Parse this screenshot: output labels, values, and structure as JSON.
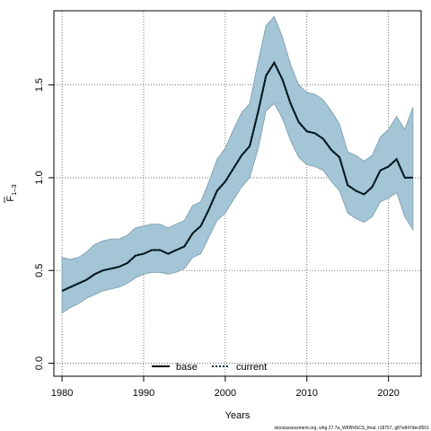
{
  "chart_data": {
    "type": "line",
    "xlabel": "Years",
    "ylabel_main": "F",
    "ylabel_sub": "1–3",
    "footer": "stockassessment.org, whg.27.7a_WKBNSCS_final, r18757, g87e847dec8551",
    "xlim": [
      1979,
      2024
    ],
    "ylim": [
      -0.07,
      1.9
    ],
    "xticks": [
      1980,
      1990,
      2000,
      2010,
      2020
    ],
    "yticks": [
      0.0,
      0.5,
      1.0,
      1.5
    ],
    "ytick_labels": [
      "0.0",
      "0.5",
      "1.0",
      "1.5"
    ],
    "grid": true,
    "legend_position": "bottom-center",
    "colors": {
      "band": "#a3c5d6",
      "band_edge": "#7a9aab",
      "base": "#000000",
      "current": "#00313f"
    },
    "x": [
      1980,
      1981,
      1982,
      1983,
      1984,
      1985,
      1986,
      1987,
      1988,
      1989,
      1990,
      1991,
      1992,
      1993,
      1994,
      1995,
      1996,
      1997,
      1998,
      1999,
      2000,
      2001,
      2002,
      2003,
      2004,
      2005,
      2006,
      2007,
      2008,
      2009,
      2010,
      2011,
      2012,
      2013,
      2014,
      2015,
      2016,
      2017,
      2018,
      2019,
      2020,
      2021,
      2022,
      2023
    ],
    "series": [
      {
        "name": "base",
        "style": "solid",
        "values": [
          0.39,
          0.41,
          0.43,
          0.45,
          0.48,
          0.5,
          0.51,
          0.52,
          0.54,
          0.58,
          0.59,
          0.61,
          0.61,
          0.59,
          0.61,
          0.63,
          0.7,
          0.74,
          0.83,
          0.93,
          0.98,
          1.05,
          1.12,
          1.17,
          1.35,
          1.55,
          1.62,
          1.53,
          1.4,
          1.3,
          1.25,
          1.24,
          1.21,
          1.15,
          1.11,
          0.96,
          0.93,
          0.91,
          0.95,
          1.04,
          1.06,
          1.1,
          1.0,
          1.0
        ]
      },
      {
        "name": "current",
        "style": "dotted",
        "values": [
          0.39,
          0.41,
          0.43,
          0.45,
          0.48,
          0.5,
          0.51,
          0.52,
          0.54,
          0.58,
          0.59,
          0.61,
          0.61,
          0.59,
          0.61,
          0.63,
          0.7,
          0.74,
          0.83,
          0.93,
          0.98,
          1.05,
          1.12,
          1.17,
          1.35,
          1.55,
          1.62,
          1.53,
          1.4,
          1.3,
          1.25,
          1.24,
          1.21,
          1.15,
          1.11,
          0.96,
          0.93,
          0.91,
          0.95,
          1.04,
          1.06,
          1.1,
          1.0,
          1.0
        ]
      }
    ],
    "band_upper": [
      0.57,
      0.56,
      0.57,
      0.6,
      0.64,
      0.66,
      0.67,
      0.67,
      0.69,
      0.73,
      0.74,
      0.75,
      0.75,
      0.73,
      0.75,
      0.77,
      0.85,
      0.87,
      0.98,
      1.1,
      1.16,
      1.26,
      1.35,
      1.4,
      1.62,
      1.82,
      1.87,
      1.76,
      1.61,
      1.5,
      1.46,
      1.45,
      1.42,
      1.36,
      1.29,
      1.14,
      1.12,
      1.09,
      1.12,
      1.22,
      1.26,
      1.33,
      1.26,
      1.38
    ],
    "band_lower": [
      0.27,
      0.3,
      0.32,
      0.35,
      0.37,
      0.39,
      0.4,
      0.41,
      0.43,
      0.46,
      0.48,
      0.49,
      0.49,
      0.48,
      0.49,
      0.51,
      0.57,
      0.59,
      0.68,
      0.77,
      0.81,
      0.88,
      0.95,
      1.0,
      1.15,
      1.36,
      1.4,
      1.32,
      1.2,
      1.11,
      1.07,
      1.06,
      1.04,
      0.98,
      0.93,
      0.81,
      0.78,
      0.76,
      0.79,
      0.87,
      0.89,
      0.92,
      0.79,
      0.72
    ]
  }
}
